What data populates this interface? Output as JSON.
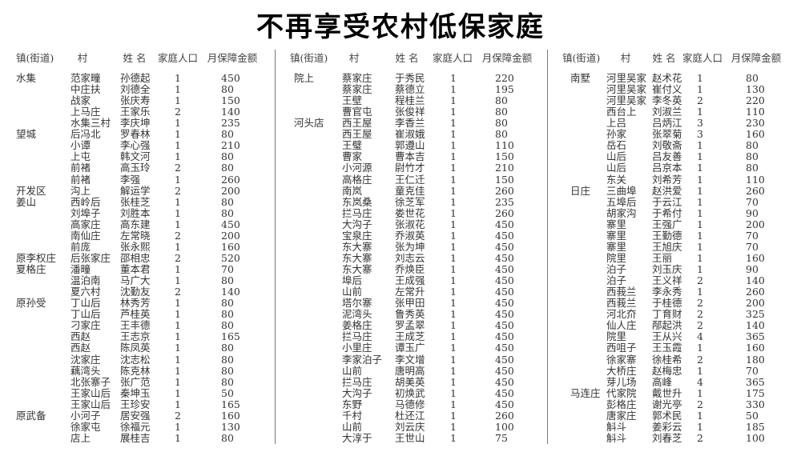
{
  "title": "不再享受农村低保家庭",
  "headers": [
    "镇(街道)",
    "村",
    "姓 名",
    "家庭人口",
    "月保障金额"
  ],
  "groups": [
    {
      "rows": [
        [
          "水集",
          "范家疃",
          "孙德起",
          "1",
          "450"
        ],
        [
          "",
          "中庄扶",
          "刘德全",
          "1",
          "80"
        ],
        [
          "",
          "战家",
          "张庆寿",
          "1",
          "150"
        ],
        [
          "",
          "上马庄",
          "王家乐",
          "2",
          "140"
        ],
        [
          "",
          "水集三村",
          "李庆坤",
          "1",
          "235"
        ],
        [
          "望城",
          "后冯北",
          "罗春林",
          "1",
          "80"
        ],
        [
          "",
          "小谭",
          "李心强",
          "1",
          "210"
        ],
        [
          "",
          "上屯",
          "韩文河",
          "1",
          "80"
        ],
        [
          "",
          "前褚",
          "高玉玲",
          "2",
          "80"
        ],
        [
          "",
          "前褚",
          "李强",
          "1",
          "260"
        ],
        [
          "开发区",
          "沟上",
          "解运学",
          "2",
          "200"
        ],
        [
          "姜山",
          "西岭后",
          "张桂芝",
          "1",
          "80"
        ],
        [
          "",
          "刘埠子",
          "刘胜本",
          "1",
          "80"
        ],
        [
          "",
          "高家庄",
          "高东建",
          "1",
          "450"
        ],
        [
          "",
          "南仙庄",
          "左常晓",
          "2",
          "200"
        ],
        [
          "",
          "前庞",
          "张永熙",
          "1",
          "160"
        ],
        [
          "原李权庄",
          "后张家庄",
          "邵相忠",
          "2",
          "520"
        ],
        [
          "夏格庄",
          "潘疃",
          "董本君",
          "1",
          "70"
        ],
        [
          "",
          "温泊南",
          "马广大",
          "1",
          "80"
        ],
        [
          "",
          "夏六村",
          "沈勤友",
          "2",
          "140"
        ],
        [
          "原孙受",
          "丁山后",
          "林秀芳",
          "1",
          "80"
        ],
        [
          "",
          "丁山后",
          "芦桂英",
          "1",
          "80"
        ],
        [
          "",
          "刁家庄",
          "王丰德",
          "1",
          "80"
        ],
        [
          "",
          "西赵",
          "王志京",
          "1",
          "165"
        ],
        [
          "",
          "西赵",
          "陈凤英",
          "1",
          "80"
        ],
        [
          "",
          "沈家庄",
          "沈志松",
          "1",
          "80"
        ],
        [
          "",
          "藕湾头",
          "陈克林",
          "1",
          "80"
        ],
        [
          "",
          "北张寨子",
          "张广范",
          "1",
          "80"
        ],
        [
          "",
          "王家山后",
          "秦坤玉",
          "1",
          "50"
        ],
        [
          "",
          "王家山后",
          "王珍安",
          "1",
          "165"
        ],
        [
          "原武备",
          "小河子",
          "居安强",
          "2",
          "160"
        ],
        [
          "",
          "徐家屯",
          "徐福元",
          "1",
          "130"
        ],
        [
          "",
          "店上",
          "展桂吉",
          "1",
          "80"
        ]
      ]
    },
    {
      "rows": [
        [
          "院上",
          "蔡家庄",
          "于秀民",
          "1",
          "220"
        ],
        [
          "",
          "蔡家庄",
          "蔡德立",
          "1",
          "195"
        ],
        [
          "",
          "王壁",
          "程桂兰",
          "1",
          "80"
        ],
        [
          "",
          "曹官屯",
          "张俊祥",
          "1",
          "80"
        ],
        [
          "河头店",
          "西王屋",
          "李香兰",
          "1",
          "80"
        ],
        [
          "",
          "西王屋",
          "崔淑娥",
          "1",
          "80"
        ],
        [
          "",
          "王璧",
          "郭遵山",
          "1",
          "110"
        ],
        [
          "",
          "曹家",
          "曹本吉",
          "1",
          "150"
        ],
        [
          "",
          "小河源",
          "尉竹才",
          "1",
          "210"
        ],
        [
          "",
          "高格庄",
          "王仁迁",
          "1",
          "150"
        ],
        [
          "",
          "南岚",
          "童克佳",
          "1",
          "260"
        ],
        [
          "",
          "东岚桑",
          "徐芝军",
          "1",
          "235"
        ],
        [
          "",
          "拦马庄",
          "娄世花",
          "1",
          "260"
        ],
        [
          "",
          "大沟子",
          "张淑花",
          "1",
          "450"
        ],
        [
          "",
          "宝泉庄",
          "乔淑英",
          "1",
          "450"
        ],
        [
          "",
          "东大寨",
          "张为坤",
          "1",
          "450"
        ],
        [
          "",
          "东大寨",
          "刘志云",
          "1",
          "450"
        ],
        [
          "",
          "东大寨",
          "乔焕臣",
          "1",
          "450"
        ],
        [
          "",
          "埠后",
          "王成强",
          "1",
          "450"
        ],
        [
          "",
          "山前",
          "左常升",
          "1",
          "450"
        ],
        [
          "",
          "塔尔寨",
          "张甲田",
          "1",
          "450"
        ],
        [
          "",
          "泥湾头",
          "鲁秀英",
          "1",
          "450"
        ],
        [
          "",
          "姜格庄",
          "罗孟翠",
          "1",
          "450"
        ],
        [
          "",
          "拦马庄",
          "王成芝",
          "1",
          "450"
        ],
        [
          "",
          "小里庄",
          "谭玉广",
          "1",
          "450"
        ],
        [
          "",
          "李家泊子",
          "李文增",
          "1",
          "450"
        ],
        [
          "",
          "山前",
          "唐明高",
          "1",
          "450"
        ],
        [
          "",
          "拦马庄",
          "胡美英",
          "1",
          "450"
        ],
        [
          "",
          "大沟子",
          "初焕武",
          "1",
          "450"
        ],
        [
          "",
          "东野",
          "马德修",
          "1",
          "450"
        ],
        [
          "",
          "千村",
          "杜还江",
          "1",
          "260"
        ],
        [
          "",
          "山前",
          "刘云庆",
          "1",
          "100"
        ],
        [
          "",
          "大淳于",
          "王世山",
          "1",
          "75"
        ]
      ]
    },
    {
      "rows": [
        [
          "南墅",
          "河里吴家",
          "赵术花",
          "1",
          "80"
        ],
        [
          "",
          "河里吴家",
          "崔付义",
          "1",
          "130"
        ],
        [
          "",
          "河里吴家",
          "李冬英",
          "2",
          "220"
        ],
        [
          "",
          "西台上",
          "刘淑兰",
          "1",
          "110"
        ],
        [
          "",
          "上吕",
          "吕炳江",
          "3",
          "230"
        ],
        [
          "",
          "孙家",
          "张翠菊",
          "3",
          "160"
        ],
        [
          "",
          "岳石",
          "刘敬斋",
          "1",
          "80"
        ],
        [
          "",
          "山后",
          "吕友善",
          "1",
          "80"
        ],
        [
          "",
          "山后",
          "吕京本",
          "1",
          "80"
        ],
        [
          "",
          "东关",
          "刘希芳",
          "1",
          "110"
        ],
        [
          "日庄",
          "三曲埠",
          "赵洪爱",
          "1",
          "260"
        ],
        [
          "",
          "五埠后",
          "于云江",
          "1",
          "70"
        ],
        [
          "",
          "胡家沟",
          "于希付",
          "1",
          "90"
        ],
        [
          "",
          "寨里",
          "王强广",
          "1",
          "200"
        ],
        [
          "",
          "寨里",
          "王勤德",
          "1",
          "70"
        ],
        [
          "",
          "寨里",
          "王旭庆",
          "1",
          "70"
        ],
        [
          "",
          "院里",
          "王丽",
          "1",
          "160"
        ],
        [
          "",
          "泊子",
          "刘玉庆",
          "1",
          "90"
        ],
        [
          "",
          "泊子",
          "王义祥",
          "2",
          "140"
        ],
        [
          "",
          "西莪兰",
          "李永秀",
          "1",
          "260"
        ],
        [
          "",
          "西莪兰",
          "于桂德",
          "2",
          "200"
        ],
        [
          "",
          "河北夼",
          "丁育财",
          "2",
          "325"
        ],
        [
          "",
          "仙人庄",
          "邴起洪",
          "2",
          "140"
        ],
        [
          "",
          "院里",
          "王从兴",
          "4",
          "365"
        ],
        [
          "",
          "西咀子",
          "王玉霞",
          "1",
          "160"
        ],
        [
          "",
          "徐家寨",
          "徐桂希",
          "2",
          "180"
        ],
        [
          "",
          "大桥庄",
          "赵梅忠",
          "1",
          "70"
        ],
        [
          "",
          "芽儿场",
          "高峰",
          "4",
          "365"
        ],
        [
          "马连庄",
          "代家院",
          "戴世升",
          "1",
          "175"
        ],
        [
          "",
          "彭格庄",
          "谢光亭",
          "2",
          "330"
        ],
        [
          "",
          "唐家庄",
          "郭术民",
          "1",
          "50"
        ],
        [
          "",
          "斛斗",
          "姜彩云",
          "1",
          "185"
        ],
        [
          "",
          "斛斗",
          "刘春芝",
          "2",
          "100"
        ]
      ]
    }
  ]
}
